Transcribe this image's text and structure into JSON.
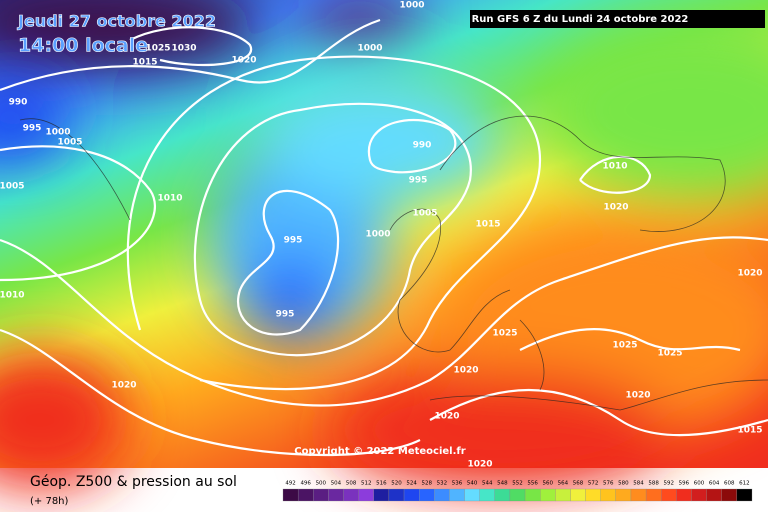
{
  "header": {
    "date": "Jeudi 27 octobre 2022",
    "time": "14:00 locale",
    "run": "Run GFS 6 Z du Lundi 24 octobre 2022"
  },
  "copyright": "Copyright © 2022 Meteociel.fr",
  "isobar_labels": [
    1000,
    1000,
    1020,
    1025,
    1030,
    1015,
    990,
    995,
    1000,
    1005,
    990,
    995,
    1005,
    1010,
    1010,
    1005,
    1015,
    1020,
    995,
    1000,
    1020,
    1010,
    995,
    1025,
    1025,
    1025,
    1020,
    1020,
    1020,
    1020,
    1015,
    1020
  ],
  "footer": {
    "title": "Géop. Z500 & pression au sol",
    "lead": "(+ 78h)"
  },
  "legend": {
    "values": [
      492,
      496,
      500,
      504,
      508,
      512,
      516,
      520,
      524,
      528,
      532,
      536,
      540,
      544,
      548,
      552,
      556,
      560,
      564,
      568,
      572,
      576,
      580,
      584,
      588,
      592,
      596,
      600,
      604,
      608,
      612
    ],
    "colors": [
      "#3c0a46",
      "#4b1464",
      "#5a1e82",
      "#6a28a0",
      "#7a32be",
      "#8c3cdc",
      "#1e1ea0",
      "#1e32c8",
      "#1e46f0",
      "#2864ff",
      "#3c8cff",
      "#50b4ff",
      "#64dcff",
      "#46e6c8",
      "#3cdc96",
      "#50dc64",
      "#78e646",
      "#a0f03c",
      "#c8f03c",
      "#f0f03c",
      "#ffdc28",
      "#ffc31e",
      "#ffaa1e",
      "#ff8c1e",
      "#ff6e1e",
      "#ff4b1e",
      "#f02d1e",
      "#d21e1e",
      "#b41414",
      "#8c0a0a",
      "#000000"
    ]
  }
}
